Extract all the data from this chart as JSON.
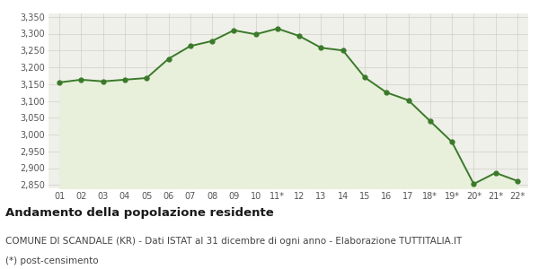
{
  "x_labels": [
    "01",
    "02",
    "03",
    "04",
    "05",
    "06",
    "07",
    "08",
    "09",
    "10",
    "11*",
    "12",
    "13",
    "14",
    "15",
    "16",
    "17",
    "18*",
    "19*",
    "20*",
    "21*",
    "22*"
  ],
  "y_values": [
    3155,
    3163,
    3158,
    3163,
    3168,
    3225,
    3263,
    3278,
    3310,
    3298,
    3315,
    3293,
    3258,
    3250,
    3170,
    3125,
    3102,
    3040,
    2978,
    2853,
    2886,
    2862
  ],
  "line_color": "#3a7a2a",
  "fill_color": "#e8efda",
  "marker_color": "#3a7a2a",
  "bg_color": "#f0f0ea",
  "grid_color": "#d0d0c8",
  "ylim_min": 2840,
  "ylim_max": 3360,
  "yticks": [
    2850,
    2900,
    2950,
    3000,
    3050,
    3100,
    3150,
    3200,
    3250,
    3300,
    3350
  ],
  "title1": "Andamento della popolazione residente",
  "title2": "COMUNE DI SCANDALE (KR) - Dati ISTAT al 31 dicembre di ogni anno - Elaborazione TUTTITALIA.IT",
  "title3": "(*) post-censimento",
  "title1_fontsize": 9.5,
  "title2_fontsize": 7.5,
  "title3_fontsize": 7.5,
  "tick_fontsize": 7,
  "line_width": 1.4,
  "marker_size": 3.5
}
